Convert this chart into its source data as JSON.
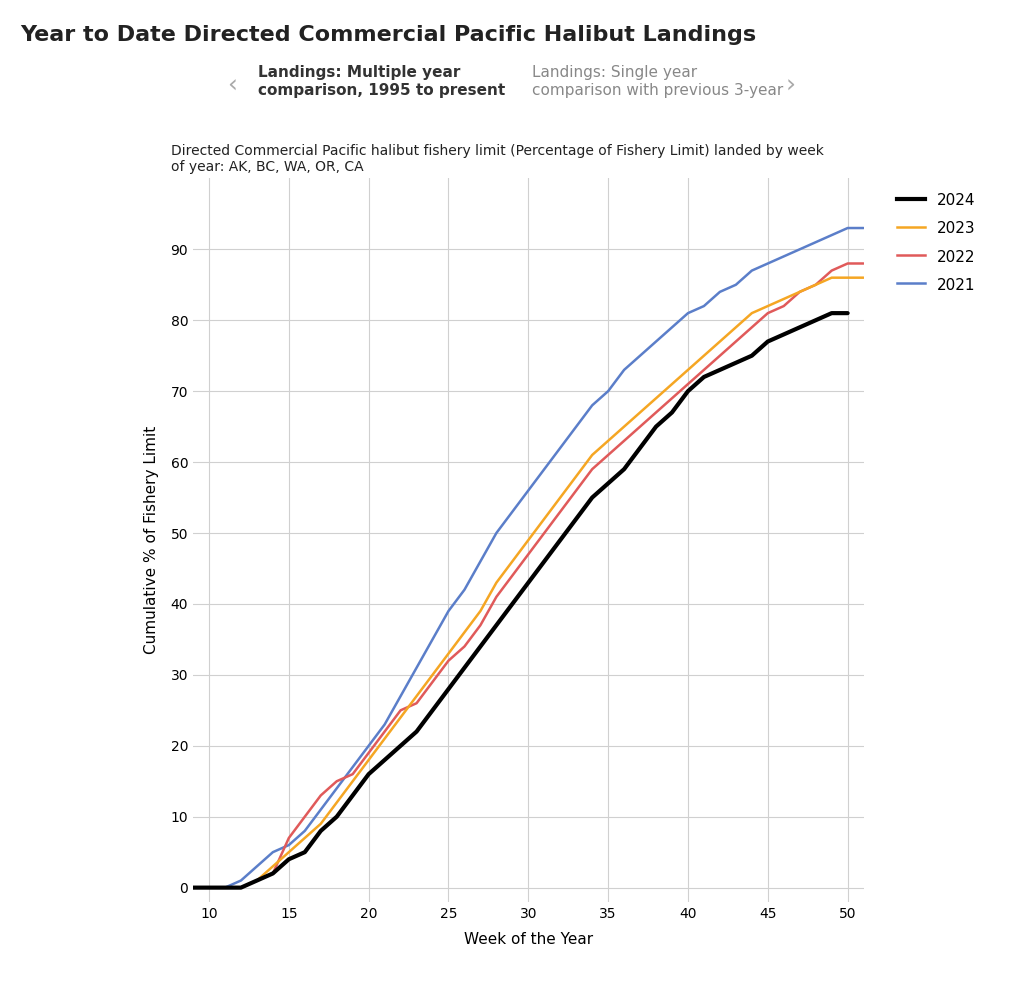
{
  "title": "Year to Date Directed Commercial Pacific Halibut Landings",
  "subtitle": "Directed Commercial Pacific halibut fishery limit (Percentage of Fishery Limit) landed by week\nof year: AK, BC, WA, OR, CA",
  "tab1": "Landings: Multiple year\ncomparison, 1995 to present",
  "tab2": "Landings: Single year\ncomparison with previous 3-year",
  "xlabel": "Week of the Year",
  "ylabel": "Cumulative % of Fishery Limit",
  "xlim": [
    9,
    51
  ],
  "ylim": [
    -2,
    100
  ],
  "xticks": [
    10,
    15,
    20,
    25,
    30,
    35,
    40,
    45,
    50
  ],
  "yticks": [
    0,
    10,
    20,
    30,
    40,
    50,
    60,
    70,
    80,
    90
  ],
  "background_color": "#ffffff",
  "plot_background": "#ffffff",
  "grid_color": "#d0d0d0",
  "series": {
    "2024": {
      "color": "#000000",
      "linewidth": 3.0,
      "weeks": [
        9,
        10,
        11,
        12,
        13,
        14,
        15,
        16,
        17,
        18,
        19,
        20,
        21,
        22,
        23,
        24,
        25,
        26,
        27,
        28,
        29,
        30,
        31,
        32,
        33,
        34,
        35,
        36,
        37,
        38,
        39,
        40,
        41,
        42,
        43,
        44,
        45,
        46,
        47,
        48,
        49,
        50
      ],
      "values": [
        0,
        0,
        0,
        0,
        1,
        2,
        4,
        5,
        8,
        10,
        13,
        16,
        18,
        20,
        22,
        25,
        28,
        31,
        34,
        37,
        40,
        43,
        46,
        49,
        52,
        55,
        57,
        59,
        62,
        65,
        67,
        70,
        72,
        73,
        74,
        75,
        77,
        78,
        79,
        80,
        81,
        81
      ]
    },
    "2023": {
      "color": "#F5A623",
      "linewidth": 1.8,
      "weeks": [
        9,
        10,
        11,
        12,
        13,
        14,
        15,
        16,
        17,
        18,
        19,
        20,
        21,
        22,
        23,
        24,
        25,
        26,
        27,
        28,
        29,
        30,
        31,
        32,
        33,
        34,
        35,
        36,
        37,
        38,
        39,
        40,
        41,
        42,
        43,
        44,
        45,
        46,
        47,
        48,
        49,
        50,
        51
      ],
      "values": [
        0,
        0,
        0,
        0,
        1,
        3,
        5,
        7,
        9,
        12,
        15,
        18,
        21,
        24,
        27,
        30,
        33,
        36,
        39,
        43,
        46,
        49,
        52,
        55,
        58,
        61,
        63,
        65,
        67,
        69,
        71,
        73,
        75,
        77,
        79,
        81,
        82,
        83,
        84,
        85,
        86,
        86,
        86
      ]
    },
    "2022": {
      "color": "#E05A5A",
      "linewidth": 1.8,
      "weeks": [
        9,
        10,
        11,
        12,
        13,
        14,
        15,
        16,
        17,
        18,
        19,
        20,
        21,
        22,
        23,
        24,
        25,
        26,
        27,
        28,
        29,
        30,
        31,
        32,
        33,
        34,
        35,
        36,
        37,
        38,
        39,
        40,
        41,
        42,
        43,
        44,
        45,
        46,
        47,
        48,
        49,
        50,
        51
      ],
      "values": [
        0,
        0,
        0,
        0,
        1,
        2,
        7,
        10,
        13,
        15,
        16,
        19,
        22,
        25,
        26,
        29,
        32,
        34,
        37,
        41,
        44,
        47,
        50,
        53,
        56,
        59,
        61,
        63,
        65,
        67,
        69,
        71,
        73,
        75,
        77,
        79,
        81,
        82,
        84,
        85,
        87,
        88,
        88
      ]
    },
    "2021": {
      "color": "#5B7EC9",
      "linewidth": 1.8,
      "weeks": [
        9,
        10,
        11,
        12,
        13,
        14,
        15,
        16,
        17,
        18,
        19,
        20,
        21,
        22,
        23,
        24,
        25,
        26,
        27,
        28,
        29,
        30,
        31,
        32,
        33,
        34,
        35,
        36,
        37,
        38,
        39,
        40,
        41,
        42,
        43,
        44,
        45,
        46,
        47,
        48,
        49,
        50,
        51
      ],
      "values": [
        0,
        0,
        0,
        1,
        3,
        5,
        6,
        8,
        11,
        14,
        17,
        20,
        23,
        27,
        31,
        35,
        39,
        42,
        46,
        50,
        53,
        56,
        59,
        62,
        65,
        68,
        70,
        73,
        75,
        77,
        79,
        81,
        82,
        84,
        85,
        87,
        88,
        89,
        90,
        91,
        92,
        93,
        93
      ]
    }
  },
  "legend_labels": [
    "2024",
    "2023",
    "2022",
    "2021"
  ],
  "legend_colors": [
    "#000000",
    "#F5A623",
    "#E05A5A",
    "#5B7EC9"
  ],
  "legend_linewidths": [
    3.0,
    1.8,
    1.8,
    1.8
  ],
  "tab1_color": "#F5E642",
  "tab2_color": "#F5F0A0",
  "tab1_text_color": "#333333",
  "tab2_text_color": "#888888",
  "title_fontsize": 16,
  "subtitle_fontsize": 10,
  "axis_label_fontsize": 11,
  "tick_fontsize": 10,
  "legend_fontsize": 11,
  "tab_fontsize": 11
}
